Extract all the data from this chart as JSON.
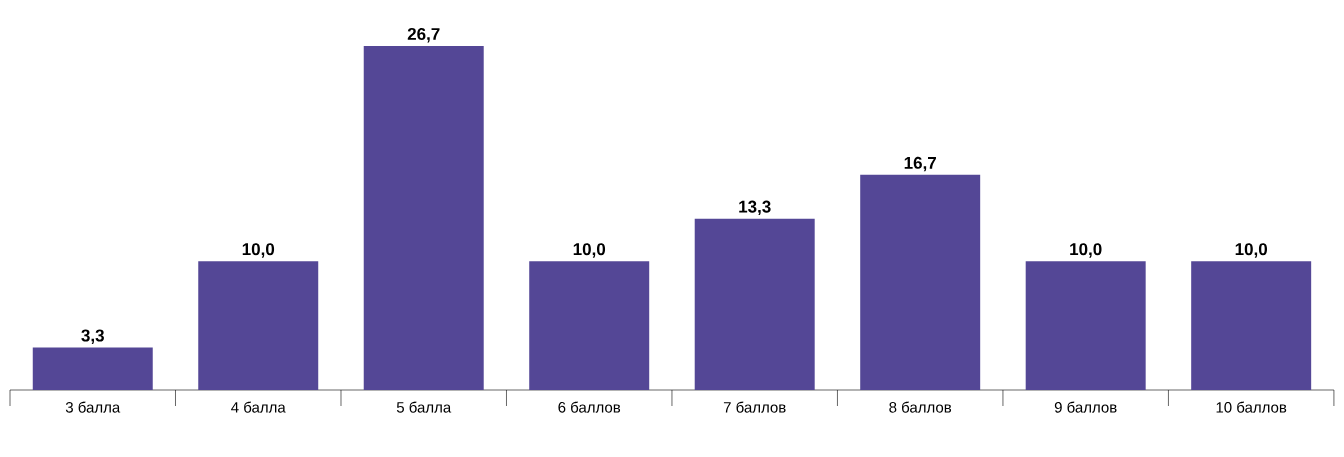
{
  "chart_data": {
    "type": "bar",
    "categories": [
      "3 балла",
      "4 балла",
      "5 балла",
      "6 баллов",
      "7 баллов",
      "8 баллов",
      "9 баллов",
      "10 баллов"
    ],
    "values": [
      3.3,
      10.0,
      26.7,
      10.0,
      13.3,
      16.7,
      10.0,
      10.0
    ],
    "value_labels": [
      "3,3",
      "10,0",
      "26,7",
      "10,0",
      "13,3",
      "16,7",
      "10,0",
      "10,0"
    ],
    "color": "#544796"
  }
}
